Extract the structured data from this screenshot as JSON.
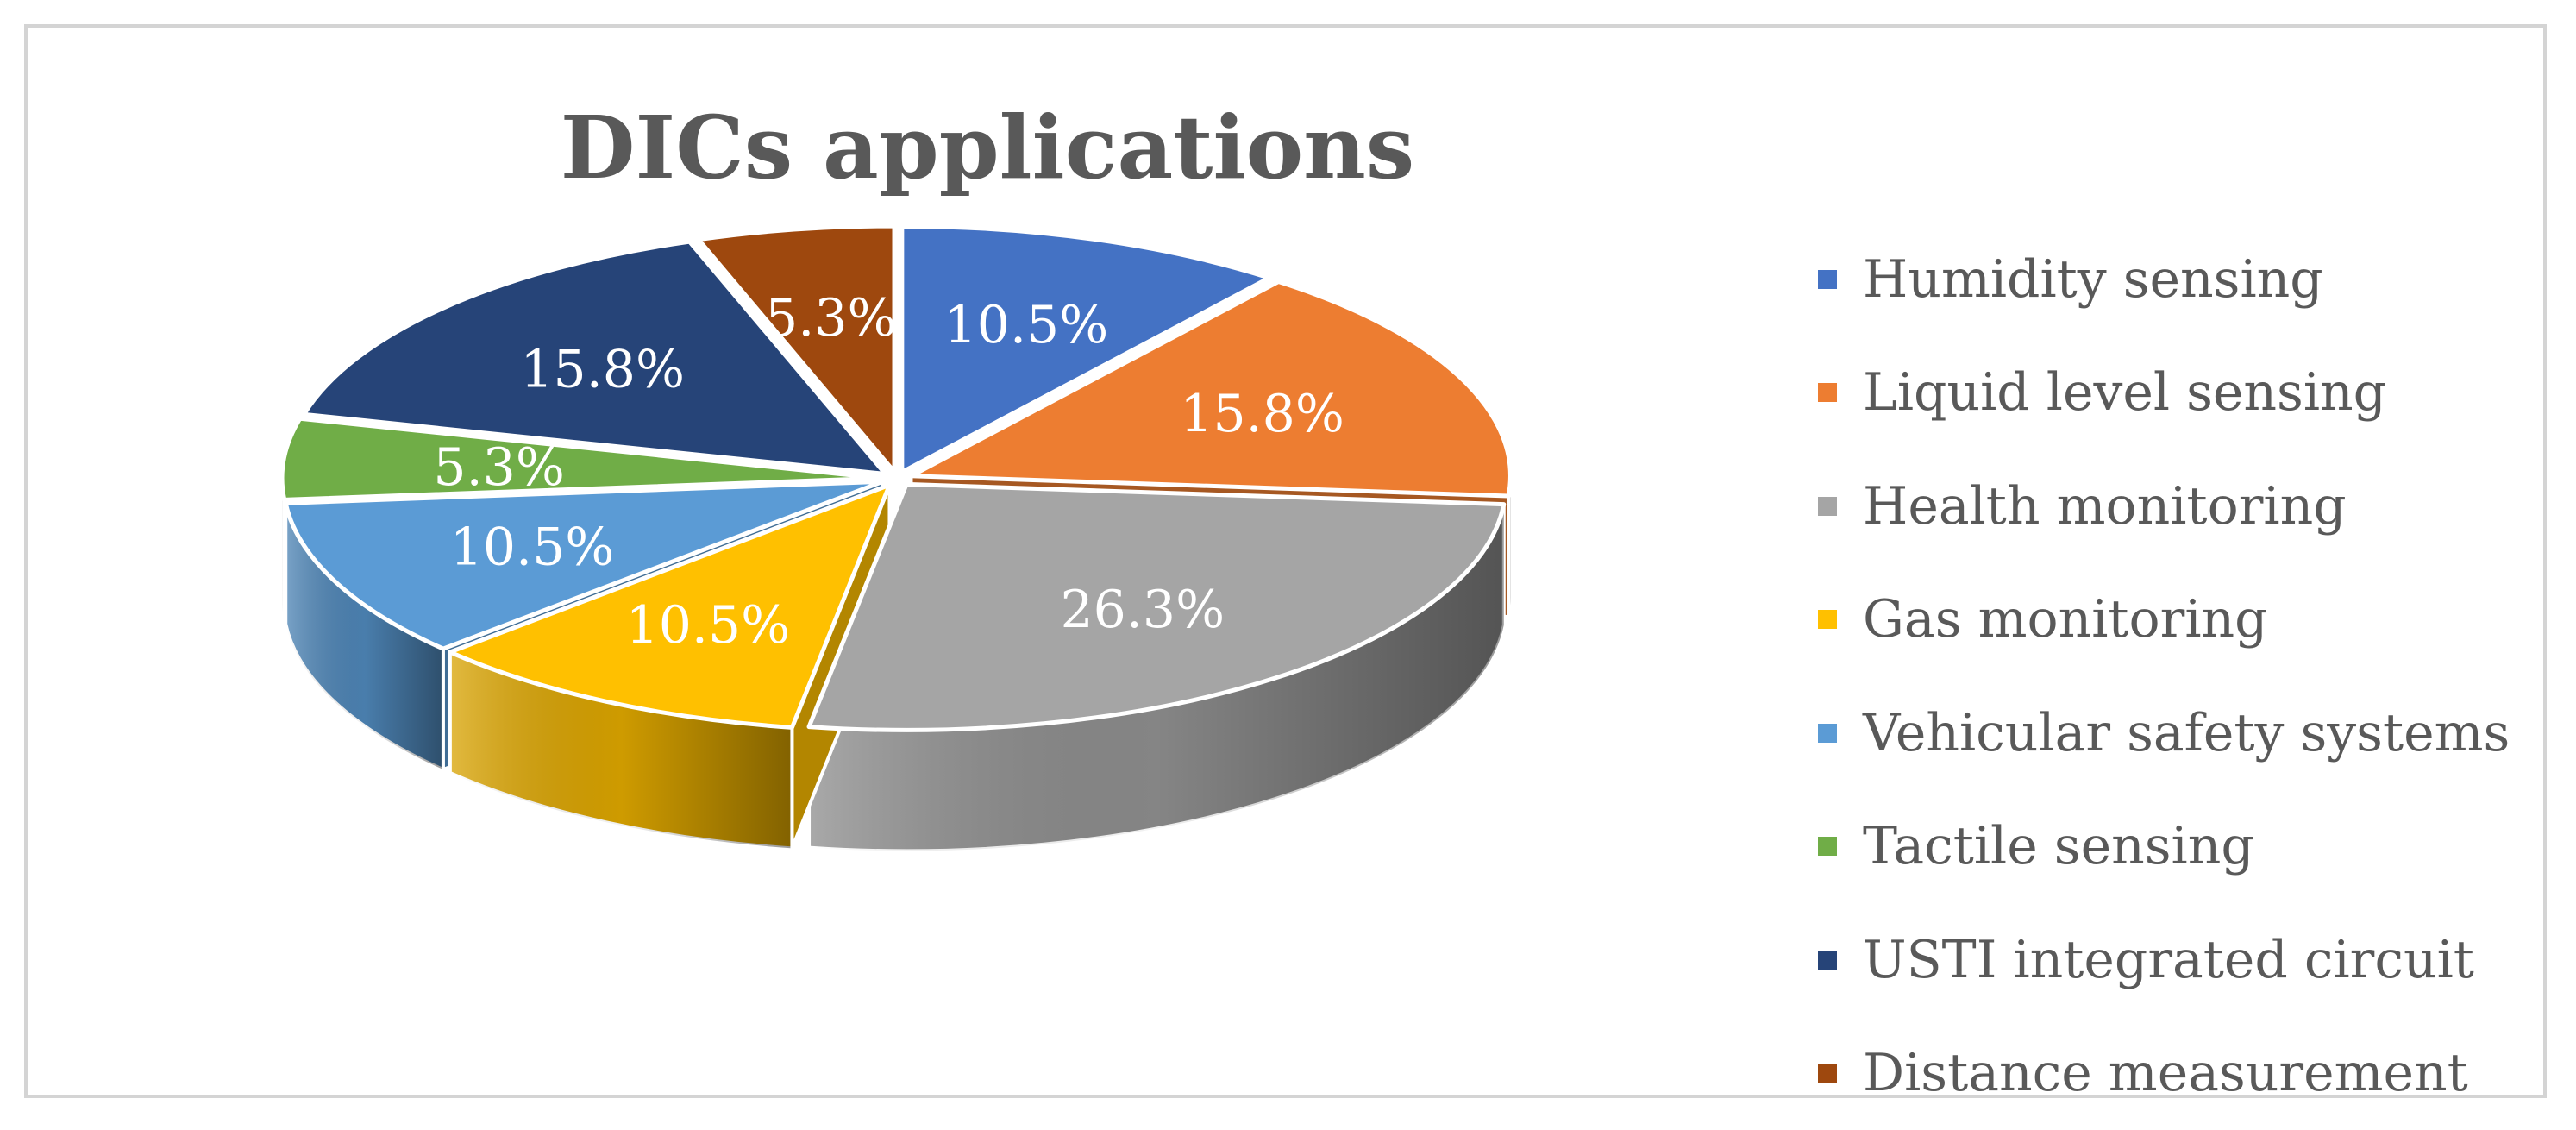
{
  "chart_data": {
    "type": "pie",
    "title": "DICs applications",
    "three_d": true,
    "legend_position": "right",
    "categories": [
      "Humidity sensing",
      "Liquid level sensing",
      "Health monitoring",
      "Gas monitoring",
      "Vehicular safety systems",
      "Tactile sensing",
      "USTI integrated circuit",
      "Distance measurement"
    ],
    "values": [
      10.5,
      15.8,
      26.3,
      10.5,
      10.5,
      5.3,
      15.8,
      5.3
    ],
    "data_labels": [
      "10.5%",
      "15.8%",
      "26.3%",
      "10.5%",
      "10.5%",
      "5.3%",
      "15.8%",
      "5.3%"
    ],
    "colors": [
      "#4472C4",
      "#ED7D31",
      "#A5A5A5",
      "#FFC000",
      "#5B9BD5",
      "#70AD47",
      "#264478",
      "#9E480E"
    ]
  }
}
